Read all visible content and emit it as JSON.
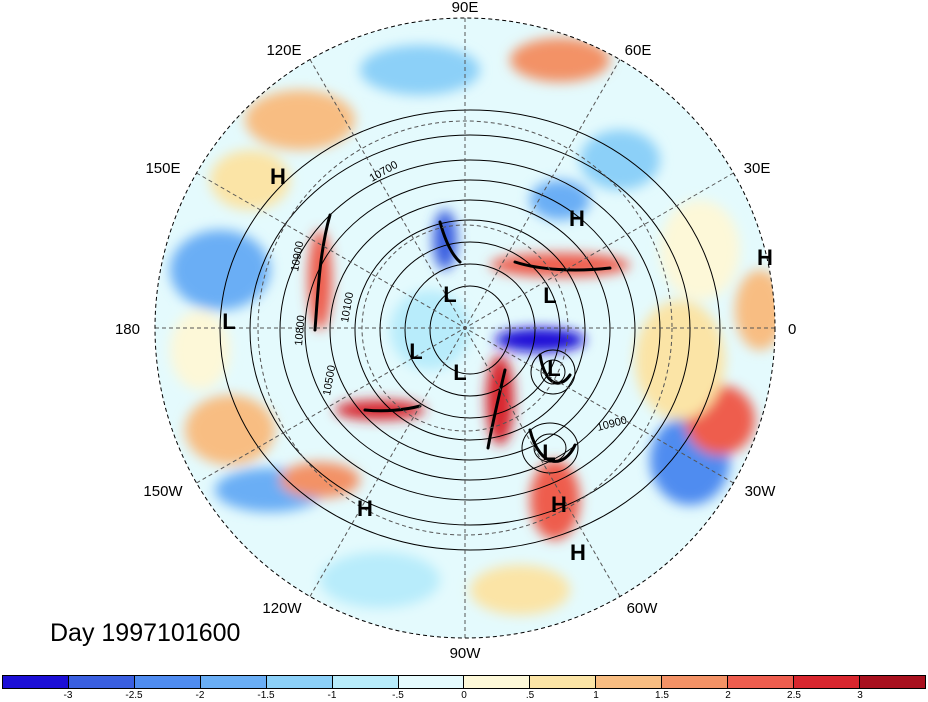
{
  "longitude_labels": [
    {
      "text": "90E",
      "deg": 90
    },
    {
      "text": "60E",
      "deg": 60
    },
    {
      "text": "30E",
      "deg": 30
    },
    {
      "text": "0",
      "deg": 0
    },
    {
      "text": "30W",
      "deg": -30
    },
    {
      "text": "60W",
      "deg": -60
    },
    {
      "text": "90W",
      "deg": -90
    },
    {
      "text": "120W",
      "deg": -120
    },
    {
      "text": "150W",
      "deg": -150
    },
    {
      "text": "180",
      "deg": 180
    },
    {
      "text": "150E",
      "deg": 150
    },
    {
      "text": "120E",
      "deg": 120
    }
  ],
  "pressure_centers": [
    "H",
    "H",
    "H",
    "L",
    "L",
    "L",
    "L",
    "L",
    "L",
    "L",
    "H",
    "H",
    "H"
  ],
  "contour_labels": [
    "10900",
    "10800",
    "10700",
    "10500",
    "10100",
    "10900"
  ],
  "title": "Day 1997101600",
  "colorbar": {
    "colors": [
      "#1c0fd6",
      "#3a5fe0",
      "#4f8cf0",
      "#6aaef5",
      "#8cd0f8",
      "#b8ecfb",
      "#e4fafd",
      "#fdf8d8",
      "#fbe4a6",
      "#f8bd82",
      "#f39266",
      "#ee5d4e",
      "#d8262e",
      "#a8101e"
    ],
    "labels": [
      "-3",
      "-2.5",
      "-2",
      "-1.5",
      "-1",
      "-.5",
      "0",
      ".5",
      "1",
      "1.5",
      "2",
      "2.5",
      "3"
    ]
  }
}
